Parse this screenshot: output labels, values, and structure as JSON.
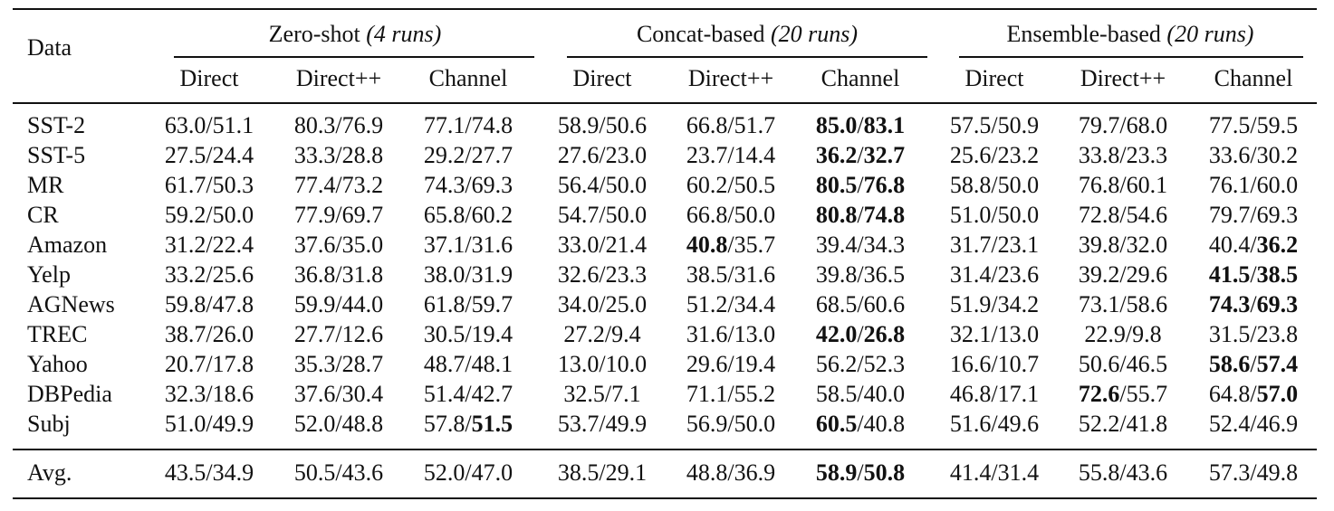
{
  "header": {
    "data_label": "Data",
    "groups": [
      {
        "name": "Zero-shot",
        "runs": "(4 runs)"
      },
      {
        "name": "Concat-based",
        "runs": "(20 runs)"
      },
      {
        "name": "Ensemble-based",
        "runs": "(20 runs)"
      }
    ],
    "methods": [
      "Direct",
      "Direct++",
      "Channel"
    ]
  },
  "rows": [
    {
      "name": "SST-2",
      "values": [
        "63.0/51.1",
        "80.3/76.9",
        "77.1/74.8",
        "58.9/50.6",
        "66.8/51.7",
        "85.0/83.1",
        "57.5/50.9",
        "79.7/68.0",
        "77.5/59.5"
      ],
      "bold": [
        [
          0,
          0
        ],
        [
          0,
          0
        ],
        [
          0,
          0
        ],
        [
          0,
          0
        ],
        [
          0,
          0
        ],
        [
          1,
          1
        ],
        [
          0,
          0
        ],
        [
          0,
          0
        ],
        [
          0,
          0
        ]
      ]
    },
    {
      "name": "SST-5",
      "values": [
        "27.5/24.4",
        "33.3/28.8",
        "29.2/27.7",
        "27.6/23.0",
        "23.7/14.4",
        "36.2/32.7",
        "25.6/23.2",
        "33.8/23.3",
        "33.6/30.2"
      ],
      "bold": [
        [
          0,
          0
        ],
        [
          0,
          0
        ],
        [
          0,
          0
        ],
        [
          0,
          0
        ],
        [
          0,
          0
        ],
        [
          1,
          1
        ],
        [
          0,
          0
        ],
        [
          0,
          0
        ],
        [
          0,
          0
        ]
      ]
    },
    {
      "name": "MR",
      "values": [
        "61.7/50.3",
        "77.4/73.2",
        "74.3/69.3",
        "56.4/50.0",
        "60.2/50.5",
        "80.5/76.8",
        "58.8/50.0",
        "76.8/60.1",
        "76.1/60.0"
      ],
      "bold": [
        [
          0,
          0
        ],
        [
          0,
          0
        ],
        [
          0,
          0
        ],
        [
          0,
          0
        ],
        [
          0,
          0
        ],
        [
          1,
          1
        ],
        [
          0,
          0
        ],
        [
          0,
          0
        ],
        [
          0,
          0
        ]
      ]
    },
    {
      "name": "CR",
      "values": [
        "59.2/50.0",
        "77.9/69.7",
        "65.8/60.2",
        "54.7/50.0",
        "66.8/50.0",
        "80.8/74.8",
        "51.0/50.0",
        "72.8/54.6",
        "79.7/69.3"
      ],
      "bold": [
        [
          0,
          0
        ],
        [
          0,
          0
        ],
        [
          0,
          0
        ],
        [
          0,
          0
        ],
        [
          0,
          0
        ],
        [
          1,
          1
        ],
        [
          0,
          0
        ],
        [
          0,
          0
        ],
        [
          0,
          0
        ]
      ]
    },
    {
      "name": "Amazon",
      "values": [
        "31.2/22.4",
        "37.6/35.0",
        "37.1/31.6",
        "33.0/21.4",
        "40.8/35.7",
        "39.4/34.3",
        "31.7/23.1",
        "39.8/32.0",
        "40.4/36.2"
      ],
      "bold": [
        [
          0,
          0
        ],
        [
          0,
          0
        ],
        [
          0,
          0
        ],
        [
          0,
          0
        ],
        [
          1,
          0
        ],
        [
          0,
          0
        ],
        [
          0,
          0
        ],
        [
          0,
          0
        ],
        [
          0,
          1
        ]
      ]
    },
    {
      "name": "Yelp",
      "values": [
        "33.2/25.6",
        "36.8/31.8",
        "38.0/31.9",
        "32.6/23.3",
        "38.5/31.6",
        "39.8/36.5",
        "31.4/23.6",
        "39.2/29.6",
        "41.5/38.5"
      ],
      "bold": [
        [
          0,
          0
        ],
        [
          0,
          0
        ],
        [
          0,
          0
        ],
        [
          0,
          0
        ],
        [
          0,
          0
        ],
        [
          0,
          0
        ],
        [
          0,
          0
        ],
        [
          0,
          0
        ],
        [
          1,
          1
        ]
      ]
    },
    {
      "name": "AGNews",
      "values": [
        "59.8/47.8",
        "59.9/44.0",
        "61.8/59.7",
        "34.0/25.0",
        "51.2/34.4",
        "68.5/60.6",
        "51.9/34.2",
        "73.1/58.6",
        "74.3/69.3"
      ],
      "bold": [
        [
          0,
          0
        ],
        [
          0,
          0
        ],
        [
          0,
          0
        ],
        [
          0,
          0
        ],
        [
          0,
          0
        ],
        [
          0,
          0
        ],
        [
          0,
          0
        ],
        [
          0,
          0
        ],
        [
          1,
          1
        ]
      ]
    },
    {
      "name": "TREC",
      "values": [
        "38.7/26.0",
        "27.7/12.6",
        "30.5/19.4",
        "27.2/9.4",
        "31.6/13.0",
        "42.0/26.8",
        "32.1/13.0",
        "22.9/9.8",
        "31.5/23.8"
      ],
      "bold": [
        [
          0,
          0
        ],
        [
          0,
          0
        ],
        [
          0,
          0
        ],
        [
          0,
          0
        ],
        [
          0,
          0
        ],
        [
          1,
          1
        ],
        [
          0,
          0
        ],
        [
          0,
          0
        ],
        [
          0,
          0
        ]
      ]
    },
    {
      "name": "Yahoo",
      "values": [
        "20.7/17.8",
        "35.3/28.7",
        "48.7/48.1",
        "13.0/10.0",
        "29.6/19.4",
        "56.2/52.3",
        "16.6/10.7",
        "50.6/46.5",
        "58.6/57.4"
      ],
      "bold": [
        [
          0,
          0
        ],
        [
          0,
          0
        ],
        [
          0,
          0
        ],
        [
          0,
          0
        ],
        [
          0,
          0
        ],
        [
          0,
          0
        ],
        [
          0,
          0
        ],
        [
          0,
          0
        ],
        [
          1,
          1
        ]
      ]
    },
    {
      "name": "DBPedia",
      "values": [
        "32.3/18.6",
        "37.6/30.4",
        "51.4/42.7",
        "32.5/7.1",
        "71.1/55.2",
        "58.5/40.0",
        "46.8/17.1",
        "72.6/55.7",
        "64.8/57.0"
      ],
      "bold": [
        [
          0,
          0
        ],
        [
          0,
          0
        ],
        [
          0,
          0
        ],
        [
          0,
          0
        ],
        [
          0,
          0
        ],
        [
          0,
          0
        ],
        [
          0,
          0
        ],
        [
          1,
          0
        ],
        [
          0,
          1
        ]
      ]
    },
    {
      "name": "Subj",
      "values": [
        "51.0/49.9",
        "52.0/48.8",
        "57.8/51.5",
        "53.7/49.9",
        "56.9/50.0",
        "60.5/40.8",
        "51.6/49.6",
        "52.2/41.8",
        "52.4/46.9"
      ],
      "bold": [
        [
          0,
          0
        ],
        [
          0,
          0
        ],
        [
          0,
          1
        ],
        [
          0,
          0
        ],
        [
          0,
          0
        ],
        [
          1,
          0
        ],
        [
          0,
          0
        ],
        [
          0,
          0
        ],
        [
          0,
          0
        ]
      ]
    }
  ],
  "avg": {
    "name": "Avg.",
    "values": [
      "43.5/34.9",
      "50.5/43.6",
      "52.0/47.0",
      "38.5/29.1",
      "48.8/36.9",
      "58.9/50.8",
      "41.4/31.4",
      "55.8/43.6",
      "57.3/49.8"
    ],
    "bold": [
      [
        0,
        0
      ],
      [
        0,
        0
      ],
      [
        0,
        0
      ],
      [
        0,
        0
      ],
      [
        0,
        0
      ],
      [
        1,
        1
      ],
      [
        0,
        0
      ],
      [
        0,
        0
      ],
      [
        0,
        0
      ]
    ]
  }
}
